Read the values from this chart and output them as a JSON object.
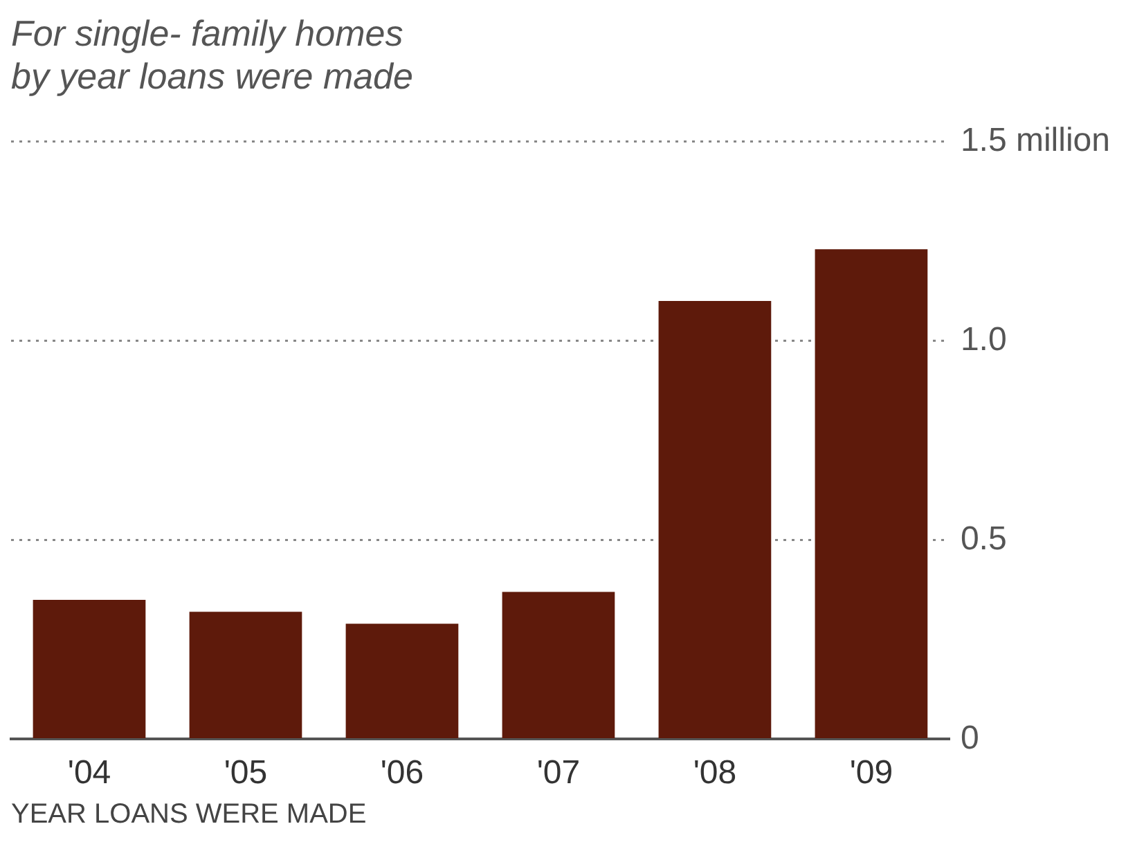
{
  "chart_data": {
    "type": "bar",
    "subtitle": "For single- family homes\nby year loans were made",
    "xlabel": "YEAR LOANS WERE MADE",
    "categories": [
      "'04",
      "'05",
      "'06",
      "'07",
      "'08",
      "'09"
    ],
    "values": [
      0.35,
      0.32,
      0.29,
      0.37,
      1.1,
      1.23
    ],
    "color": "#5e1a0b",
    "ylim": [
      0,
      1.5
    ],
    "yticks": [
      0,
      0.5,
      {
        "value": 1,
        "label": "1.0"
      },
      {
        "value": 1.5,
        "label": "1.5 million"
      }
    ],
    "grid": "y",
    "legend": false
  }
}
